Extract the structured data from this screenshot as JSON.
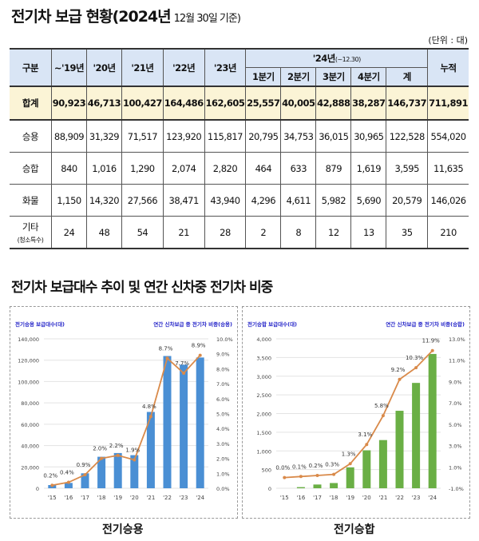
{
  "title": "전기차 보급 현황(2024년",
  "title_sub": "12월 30일 기준)",
  "unit": "(단위 : 대)",
  "table": {
    "headers": [
      "구분",
      "~'19년",
      "'20년",
      "'21년",
      "'22년",
      "'23년"
    ],
    "group_header": "'24년",
    "group_sub": "(~12.30)",
    "sub_headers": [
      "1분기",
      "2분기",
      "3분기",
      "4분기",
      "계"
    ],
    "last_header": "누적",
    "rows": [
      {
        "label": "합계",
        "values": [
          "90,923",
          "46,713",
          "100,427",
          "164,486",
          "162,605",
          "25,557",
          "40,005",
          "42,888",
          "38,287",
          "146,737",
          "711,891"
        ]
      },
      {
        "label": "승용",
        "values": [
          "88,909",
          "31,329",
          "71,517",
          "123,920",
          "115,817",
          "20,795",
          "34,753",
          "36,015",
          "30,965",
          "122,528",
          "554,020"
        ]
      },
      {
        "label": "승합",
        "values": [
          "840",
          "1,016",
          "1,290",
          "2,074",
          "2,820",
          "464",
          "633",
          "879",
          "1,619",
          "3,595",
          "11,635"
        ]
      },
      {
        "label": "화물",
        "values": [
          "1,150",
          "14,320",
          "27,566",
          "38,471",
          "43,940",
          "4,296",
          "4,611",
          "5,982",
          "5,690",
          "20,579",
          "146,026"
        ]
      },
      {
        "label": "기타",
        "sublabel": "(청소특수)",
        "values": [
          "24",
          "48",
          "54",
          "21",
          "28",
          "2",
          "8",
          "12",
          "13",
          "35",
          "210"
        ]
      }
    ]
  },
  "section_title": "전기차 보급대수 추이 및 연간 신차중 전기차 비중",
  "chart_data": [
    {
      "type": "bar+line",
      "caption": "전기승용",
      "ylabel_left": "전기승용 보급대수(대)",
      "ylabel_right": "연간 신차보급 중 전기차 비중(승용)",
      "categories": [
        "'15",
        "'16",
        "'17",
        "'18",
        "'19",
        "'20",
        "'21",
        "'22",
        "'23",
        "'24"
      ],
      "bars": [
        3000,
        5000,
        14000,
        29500,
        33000,
        31000,
        71500,
        123900,
        115800,
        122500
      ],
      "line": [
        0.2,
        0.4,
        0.9,
        2.0,
        2.2,
        1.9,
        4.8,
        8.7,
        7.7,
        8.9
      ],
      "ylim_left": [
        0,
        140000
      ],
      "yticks_left": [
        0,
        20000,
        40000,
        60000,
        80000,
        100000,
        120000,
        140000
      ],
      "ylim_right": [
        0,
        10
      ],
      "yticks_right": [
        0,
        1,
        2,
        3,
        4,
        5,
        6,
        7,
        8,
        9,
        10
      ],
      "bar_color": "#4a8fd4",
      "line_color": "#d98a4a",
      "label_color": "#2323c8"
    },
    {
      "type": "bar+line",
      "caption": "전기승합",
      "ylabel_left": "전기승합 보급대수(대)",
      "ylabel_right": "연간 신차보급 중 전기차 비중(승합)",
      "categories": [
        "'15",
        "'16",
        "'17",
        "'18",
        "'19",
        "'20",
        "'21",
        "'22",
        "'23",
        "'24"
      ],
      "bars": [
        0,
        30,
        100,
        140,
        560,
        1016,
        1290,
        2074,
        2820,
        3595
      ],
      "line": [
        0.0,
        0.1,
        0.2,
        0.3,
        1.3,
        3.1,
        5.8,
        9.2,
        10.3,
        11.9
      ],
      "ylim_left": [
        0,
        4000
      ],
      "yticks_left": [
        0,
        500,
        1000,
        1500,
        2000,
        2500,
        3000,
        3500,
        4000
      ],
      "ylim_right": [
        -1,
        13
      ],
      "yticks_right": [
        -1,
        1,
        3,
        5,
        7,
        9,
        11,
        13
      ],
      "bar_color": "#6aaf45",
      "line_color": "#d98a4a",
      "label_color": "#2323c8"
    }
  ]
}
